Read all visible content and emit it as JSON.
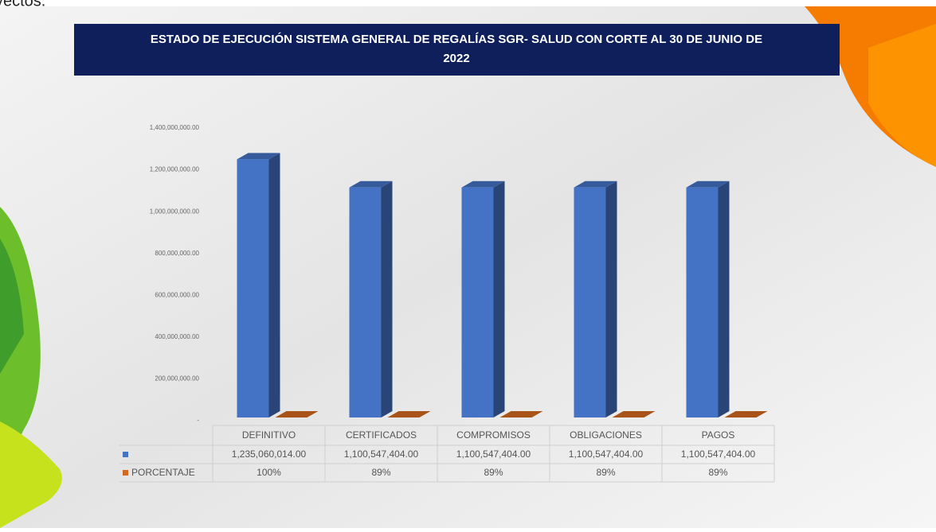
{
  "annotation": "yectos.",
  "chart_data": {
    "type": "bar3d",
    "title": "ESTADO DE EJECUCIÓN SISTEMA GENERAL DE REGALÍAS SGR- SALUD  CON  CORTE AL 30 DE JUNIO DE 2022",
    "categories": [
      "DEFINITIVO",
      "CERTIFICADOS",
      "COMPROMISOS",
      "OBLIGACIONES",
      "PAGOS"
    ],
    "series": [
      {
        "name": null,
        "color": "#4472c4",
        "values": [
          1235060014,
          1100547404,
          1100547404,
          1100547404,
          1100547404
        ],
        "value_labels": [
          "1,235,060,014.00",
          "1,100,547,404.00",
          "1,100,547,404.00",
          "1,100,547,404.00",
          "1,100,547,404.00"
        ]
      },
      {
        "name": "PORCENTAJE",
        "color": "#d2691e",
        "values": [
          100,
          89,
          89,
          89,
          89
        ],
        "value_labels": [
          "100%",
          "89%",
          "89%",
          "89%",
          "89%"
        ]
      }
    ],
    "ylim": [
      0,
      1400000000
    ],
    "yticks": [
      {
        "value": 0,
        "label": "-"
      },
      {
        "value": 200000000,
        "label": "200,000,000.00"
      },
      {
        "value": 400000000,
        "label": "400,000,000.00"
      },
      {
        "value": 600000000,
        "label": "600,000,000.00"
      },
      {
        "value": 800000000,
        "label": "800,000,000.00"
      },
      {
        "value": 1000000000,
        "label": "1,000,000,000.00"
      },
      {
        "value": 1200000000,
        "label": "1,200,000,000.00"
      },
      {
        "value": 1400000000,
        "label": "1,400,000,000.00"
      }
    ],
    "grid": false,
    "data_table": true
  }
}
